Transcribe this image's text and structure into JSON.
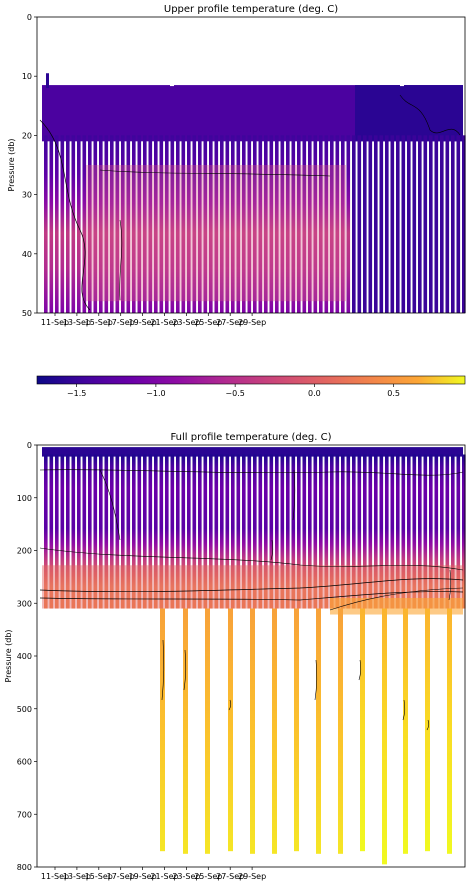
{
  "chart_data": [
    {
      "type": "heatmap",
      "title": "Upper profile temperature (deg. C)",
      "ylabel": "Pressure (db)",
      "xlabel": "",
      "ylim": [
        0,
        50
      ],
      "y_inverted": true,
      "yticks": [
        "0",
        "10",
        "20",
        "30",
        "40",
        "50"
      ],
      "xticks": [
        "11-Sep",
        "13-Sep",
        "15-Sep",
        "17-Sep",
        "19-Sep",
        "21-Sep",
        "23-Sep",
        "25-Sep",
        "27-Sep",
        "29-Sep"
      ],
      "colormap": "plasma",
      "data_pressure_range": [
        11.5,
        50
      ],
      "shallow_band_pressure_range": [
        11.5,
        21
      ],
      "deep_section_pressure_range": [
        21,
        50
      ],
      "casts_per_day": 2,
      "typical_values": {
        "near_surface_c": -1.5,
        "mid_depth_c": -1.1,
        "late_period_surface_c": -1.65
      },
      "grid": false
    },
    {
      "type": "colorbar",
      "range": [
        -1.75,
        0.95
      ],
      "ticks": [
        "−1.5",
        "−1.0",
        "−0.5",
        "0.0",
        "0.5"
      ],
      "colormap": "plasma"
    },
    {
      "type": "heatmap",
      "title": "Full profile temperature (deg. C)",
      "ylabel": "Pressure (db)",
      "xlabel": "",
      "ylim": [
        0,
        800
      ],
      "y_inverted": true,
      "yticks": [
        "0",
        "100",
        "200",
        "300",
        "400",
        "500",
        "600",
        "700",
        "800"
      ],
      "xticks": [
        "11-Sep",
        "13-Sep",
        "15-Sep",
        "17-Sep",
        "19-Sep",
        "21-Sep",
        "23-Sep",
        "25-Sep",
        "27-Sep",
        "29-Sep"
      ],
      "colormap": "plasma",
      "shallow_cast_max_pressure_db": 310,
      "deep_cast_max_pressure_db": 775,
      "temperature_profile": {
        "pressure_db": [
          0,
          30,
          100,
          200,
          230,
          260,
          290,
          310,
          400,
          500,
          600,
          700,
          780
        ],
        "temp_c": [
          -1.6,
          -1.45,
          -1.3,
          -1.3,
          -1.0,
          -0.6,
          -0.3,
          -0.15,
          0.55,
          0.65,
          0.72,
          0.78,
          0.8
        ]
      },
      "grid": false
    }
  ]
}
